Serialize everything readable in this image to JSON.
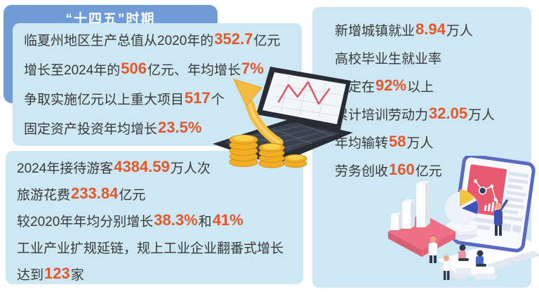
{
  "title_tab": {
    "label": "“十四五”时期"
  },
  "colors": {
    "panel_blue": "#6f9bd7",
    "card_light_blue": "#cde7f3",
    "accent_orange": "#e5572b",
    "text_dark": "#3a3a3a"
  },
  "gdp_card": {
    "lines": [
      [
        {
          "t": "临夏州地区生产总值从2020年的"
        },
        {
          "t": "352.7",
          "em": true
        },
        {
          "t": "亿元"
        }
      ],
      [
        {
          "t": "增长至2024年的"
        },
        {
          "t": "506",
          "em": true
        },
        {
          "t": "亿元、年均增长"
        },
        {
          "t": "7%",
          "em": true
        }
      ],
      [
        {
          "t": "争取实施亿元以上重大项目"
        },
        {
          "t": "517",
          "em": true
        },
        {
          "t": "个"
        }
      ],
      [
        {
          "t": "固定资产投资年均增长"
        },
        {
          "t": "23.5%",
          "em": true
        }
      ]
    ]
  },
  "tourism_card": {
    "lines": [
      [
        {
          "t": "2024年接待游客"
        },
        {
          "t": "4384.59",
          "em": true
        },
        {
          "t": "万人次"
        }
      ],
      [
        {
          "t": "旅游花费"
        },
        {
          "t": "233.84",
          "em": true
        },
        {
          "t": "亿元"
        }
      ],
      [
        {
          "t": "较2020年年均分别增长"
        },
        {
          "t": "38.3%",
          "em": true
        },
        {
          "t": "和"
        },
        {
          "t": "41%",
          "em": true
        }
      ],
      [
        {
          "t": "工业产业扩规延链，规上工业企业翻番式增长"
        }
      ],
      [
        {
          "t": "达到"
        },
        {
          "t": "123",
          "em": true
        },
        {
          "t": "家"
        }
      ]
    ]
  },
  "employment_card": {
    "lines": [
      [
        {
          "t": "新增城镇就业"
        },
        {
          "t": "8.94",
          "em": true
        },
        {
          "t": "万人"
        }
      ],
      [
        {
          "t": "高校毕业生就业率"
        }
      ],
      [
        {
          "t": "稳定在"
        },
        {
          "t": "92%",
          "em": true
        },
        {
          "t": "以上"
        }
      ],
      [
        {
          "t": "累计培训劳动力"
        },
        {
          "t": "32.05",
          "em": true
        },
        {
          "t": "万人"
        }
      ],
      [
        {
          "t": "年均输转"
        },
        {
          "t": "58",
          "em": true
        },
        {
          "t": "万人"
        }
      ],
      [
        {
          "t": "劳务创收"
        },
        {
          "t": "160",
          "em": true
        },
        {
          "t": "亿元"
        }
      ]
    ]
  },
  "illustrations": {
    "laptop": "laptop-with-growth-chart-gold-coins-and-up-arrow",
    "people": "team-analyzing-data-dashboard-pie-chart-bar-columns"
  }
}
